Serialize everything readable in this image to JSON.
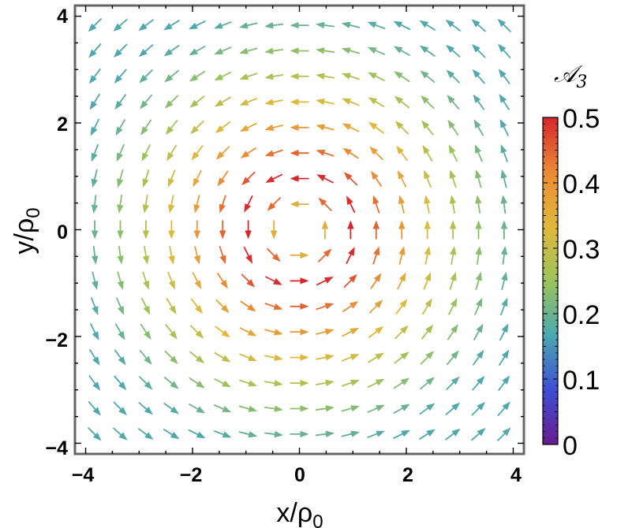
{
  "chart_data": {
    "type": "vector-field",
    "xlabel": "x/ρ",
    "xlabel_sub": "0",
    "ylabel": "y/ρ",
    "ylabel_sub": "0",
    "xlim": [
      -4.2,
      4.2
    ],
    "ylim": [
      -4.2,
      4.2
    ],
    "xticks": [
      -4,
      -2,
      0,
      2,
      4
    ],
    "yticks": [
      -4,
      -2,
      0,
      2,
      4
    ],
    "xtick_labels": [
      "−4",
      "−2",
      "0",
      "2",
      "4"
    ],
    "ytick_labels": [
      "−4",
      "−2",
      "0",
      "2",
      "4"
    ],
    "grid": false,
    "field": {
      "description_of_values": "counter-clockwise circulating vector field; color = magnitude",
      "x_range": [
        -3.83,
        3.83
      ],
      "y_range": [
        -3.83,
        3.83
      ],
      "samples_per_axis": 17,
      "peak_magnitude": 0.5,
      "peak_radius": 1.0,
      "magnitude_model": "peak_magnitude * (r/peak_radius) * exp((1 - (r/peak_radius)^2)/2) style falloff"
    },
    "colorbar": {
      "title": "𝒜",
      "title_sub": "3",
      "range": [
        0,
        0.5
      ],
      "tick_values": [
        0,
        0.1,
        0.2,
        0.3,
        0.4,
        0.5
      ],
      "tick_labels": [
        "0",
        "0.1",
        "0.2",
        "0.3",
        "0.4",
        "0.5"
      ],
      "colors": [
        "#6a1b8f",
        "#3d4fd4",
        "#4ba7b1",
        "#9bc45a",
        "#e0b83c",
        "#eb8a35",
        "#d7262b"
      ]
    }
  }
}
